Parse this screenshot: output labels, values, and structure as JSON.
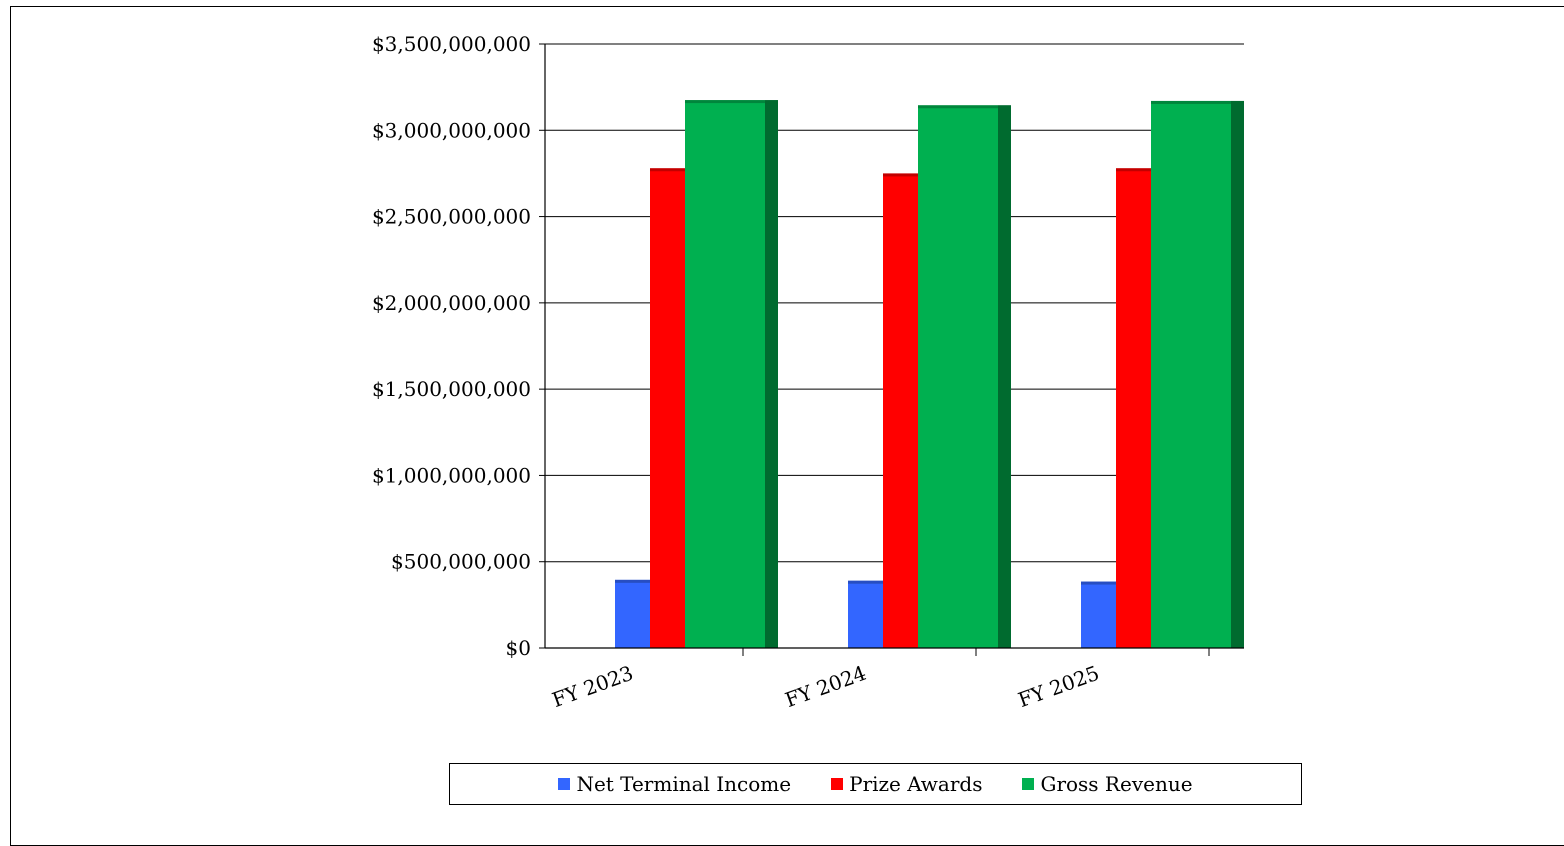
{
  "chart_data": {
    "type": "bar",
    "categories": [
      "FY 2023",
      "FY 2024",
      "FY 2025"
    ],
    "series": [
      {
        "name": "Net Terminal Income",
        "values": [
          395000000,
          390000000,
          385000000
        ],
        "color": "#3366ff",
        "side_color": "#1f3d99"
      },
      {
        "name": "Prize Awards",
        "values": [
          2780000000,
          2750000000,
          2780000000
        ],
        "color": "#ff0000",
        "side_color": "#990000"
      },
      {
        "name": "Gross Revenue",
        "values": [
          3175000000,
          3145000000,
          3170000000
        ],
        "color": "#00b050",
        "side_color": "#006b2f"
      }
    ],
    "y_ticks": [
      "$0",
      "$500,000,000",
      "$1,000,000,000",
      "$1,500,000,000",
      "$2,000,000,000",
      "$2,500,000,000",
      "$3,000,000,000",
      "$3,500,000,000"
    ],
    "ylim": [
      0,
      3500000000
    ],
    "grid": true,
    "legend_position": "bottom"
  }
}
